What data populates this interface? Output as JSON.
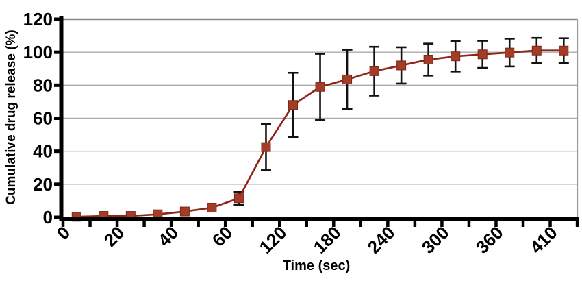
{
  "chart_data": {
    "type": "line",
    "title": "",
    "xlabel": "Time (sec)",
    "ylabel": "Cumulative drug release (%)",
    "legend": "none",
    "grid": "horizontal",
    "x_axis": {
      "tick_labels": [
        "0",
        "20",
        "40",
        "60",
        "120",
        "180",
        "240",
        "300",
        "360",
        "410"
      ],
      "labels_on_every_other_boundary": true,
      "n_categories": 19,
      "ticks_between_categories": true,
      "label_rotation_deg": -45
    },
    "y_axis": {
      "ticks": [
        0,
        20,
        40,
        60,
        80,
        100,
        120
      ],
      "range": [
        0,
        120
      ]
    },
    "series": [
      {
        "name": "Cumulative drug release",
        "marker": "filled-square",
        "values": [
          0.3,
          0.8,
          0.8,
          1.8,
          3.5,
          5.8,
          11.5,
          42.5,
          68,
          79,
          83.5,
          88.5,
          92,
          95.5,
          97.5,
          98.7,
          99.8,
          101,
          101
        ],
        "errors": [
          0,
          0,
          0,
          0,
          0,
          0,
          4,
          14,
          19.5,
          20,
          18,
          14.8,
          11,
          9.7,
          9.2,
          8.2,
          8.4,
          7.7,
          7.5
        ]
      }
    ]
  },
  "colors": {
    "marker_fill": "#a33d28",
    "marker_edge": "#7d2718",
    "line": "#8e2518",
    "error_bar": "#121212",
    "axis": "#000000",
    "gridline": "#ababab",
    "gridline_top": "#8a8a8a",
    "plot_border_right": "#9c9c9c",
    "background": "#ffffff",
    "text": "#000000"
  }
}
